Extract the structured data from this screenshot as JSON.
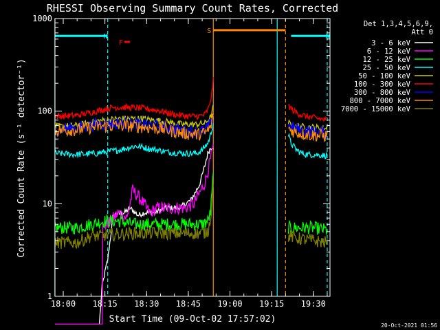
{
  "chart_data": {
    "type": "line",
    "title": "RHESSI Observing Summary Count Rates, Corrected",
    "xlabel": "Start Time (09-Oct-02 17:57:02)",
    "ylabel": "Corrected Count Rate (s⁻¹ detector⁻¹)",
    "yscale": "log",
    "ylim": [
      1,
      1000
    ],
    "xlim": [
      "17:57:02",
      "19:36:00"
    ],
    "x_ticks": [
      "18:00",
      "18:15",
      "18:30",
      "18:45",
      "19:00",
      "19:15",
      "19:30"
    ],
    "y_ticks": [
      "1",
      "10",
      "100",
      "1000"
    ],
    "timestamp": "20-Oct-2021 01:56",
    "legend": {
      "position": "top-right",
      "header": [
        "Det 1,3,4,5,6,9,",
        "Att 0"
      ],
      "entries": [
        {
          "label": "3 - 6 keV",
          "color": "#ffffff"
        },
        {
          "label": "6 - 12 keV",
          "color": "#ff00ff"
        },
        {
          "label": "12 - 25 keV",
          "color": "#00ff00"
        },
        {
          "label": "25 - 50 keV",
          "color": "#00ffff"
        },
        {
          "label": "50 - 100 keV",
          "color": "#cccc00"
        },
        {
          "label": "100 - 300 keV",
          "color": "#ff0000"
        },
        {
          "label": "300 - 800 keV",
          "color": "#0000ff"
        },
        {
          "label": "800 - 7000 keV",
          "color": "#ff8c00"
        },
        {
          "label": "7000 - 15000 keV",
          "color": "#808000"
        }
      ]
    },
    "flags": [
      {
        "label": "N",
        "color": "#00ffff",
        "x_start": "17:57",
        "x_end": "18:16",
        "y": 650
      },
      {
        "label": "F",
        "color": "#ff0000",
        "x_start": "18:22",
        "x_end": "18:24",
        "y": 560
      },
      {
        "label": "S",
        "color": "#ff8c00",
        "x_start": "18:54",
        "x_end": "19:20",
        "y": 750
      },
      {
        "label": "N",
        "color": "#00ffff",
        "x_start": "19:22",
        "x_end": "19:36",
        "y": 650
      }
    ],
    "vertical_lines": [
      {
        "x": "17:57",
        "color": "#00ffff",
        "style": "solid"
      },
      {
        "x": "18:16",
        "color": "#00ffff",
        "style": "dashed"
      },
      {
        "x": "18:54",
        "color": "#ff8c00",
        "style": "solid"
      },
      {
        "x": "19:17",
        "color": "#00ffff",
        "style": "solid"
      },
      {
        "x": "19:20",
        "color": "#ff8c00",
        "style": "dashed"
      },
      {
        "x": "19:35",
        "color": "#00ffff",
        "style": "dashed"
      }
    ],
    "data_gap": [
      "18:54",
      "19:20"
    ],
    "series": [
      {
        "name": "3 - 6 keV",
        "color": "#ffffff",
        "segments": [
          {
            "x": [
              "17:57",
              "18:13",
              "18:14",
              "18:15",
              "18:16",
              "18:18",
              "18:22",
              "18:24",
              "18:27",
              "18:29",
              "18:33",
              "18:37",
              "18:42",
              "18:46",
              "18:49",
              "18:51",
              "18:52",
              "18:53",
              "18:54"
            ],
            "y": [
              0.5,
              0.5,
              1.3,
              1.8,
              2.5,
              7.5,
              8,
              9,
              7.5,
              8,
              8,
              9,
              9,
              11,
              16,
              26,
              35,
              40,
              42
            ]
          }
        ]
      },
      {
        "name": "6 - 12 keV",
        "color": "#ff00ff",
        "segments": [
          {
            "x": [
              "17:57",
              "18:14",
              "18:14.2",
              "18:17",
              "18:20",
              "18:23",
              "18:25",
              "18:27",
              "18:29",
              "18:31",
              "18:34",
              "18:37",
              "18:40",
              "18:44",
              "18:47",
              "18:49",
              "18:51",
              "18:53",
              "18:54"
            ],
            "y": [
              0.5,
              0.5,
              5.5,
              6.5,
              8,
              7,
              14,
              12,
              10,
              8,
              9,
              9,
              9,
              9,
              10,
              13,
              17,
              30,
              40
            ]
          }
        ]
      },
      {
        "name": "12 - 25 keV",
        "color": "#00ff00",
        "segments": [
          {
            "x": [
              "17:57",
              "18:05",
              "18:10",
              "18:15",
              "18:20",
              "18:25",
              "18:30",
              "18:35",
              "18:40",
              "18:45",
              "18:50",
              "18:52",
              "18:53",
              "18:54"
            ],
            "y": [
              5.5,
              5.5,
              6,
              6.5,
              6.5,
              6,
              6,
              6,
              6,
              6,
              6,
              6.5,
              8,
              20
            ]
          },
          {
            "x": [
              "19:21",
              "19:25",
              "19:30",
              "19:35"
            ],
            "y": [
              5.5,
              5.5,
              5.5,
              5.2
            ]
          }
        ]
      },
      {
        "name": "25 - 50 keV",
        "color": "#00ffff",
        "segments": [
          {
            "x": [
              "17:57",
              "18:05",
              "18:12",
              "18:20",
              "18:26",
              "18:30",
              "18:38",
              "18:44",
              "18:48",
              "18:50",
              "18:52",
              "18:53",
              "18:54"
            ],
            "y": [
              35,
              34,
              35,
              38,
              42,
              40,
              36,
              35,
              35,
              38,
              45,
              55,
              75
            ]
          },
          {
            "x": [
              "19:21",
              "19:22",
              "19:24",
              "19:26",
              "19:28",
              "19:30",
              "19:35"
            ],
            "y": [
              55,
              45,
              38,
              35,
              34,
              34,
              33
            ]
          }
        ]
      },
      {
        "name": "50 - 100 keV",
        "color": "#cccc00",
        "segments": [
          {
            "x": [
              "17:57",
              "18:05",
              "18:12",
              "18:20",
              "18:28",
              "18:36",
              "18:43",
              "18:48",
              "18:51",
              "18:53",
              "18:54"
            ],
            "y": [
              68,
              70,
              78,
              83,
              83,
              78,
              72,
              72,
              74,
              85,
              110
            ]
          },
          {
            "x": [
              "19:21",
              "19:23",
              "19:26",
              "19:30",
              "19:35"
            ],
            "y": [
              75,
              70,
              68,
              67,
              65
            ]
          }
        ]
      },
      {
        "name": "100 - 300 keV",
        "color": "#ff0000",
        "segments": [
          {
            "x": [
              "17:57",
              "18:05",
              "18:12",
              "18:18",
              "18:22",
              "18:28",
              "18:34",
              "18:40",
              "18:45",
              "18:49",
              "18:51",
              "18:52.5",
              "18:53.5",
              "18:54"
            ],
            "y": [
              88,
              90,
              100,
              110,
              110,
              108,
              102,
              92,
              88,
              88,
              92,
              110,
              160,
              215
            ]
          },
          {
            "x": [
              "19:21",
              "19:23",
              "19:26",
              "19:30",
              "19:35"
            ],
            "y": [
              115,
              100,
              90,
              85,
              80
            ]
          }
        ]
      },
      {
        "name": "300 - 800 keV",
        "color": "#0000ff",
        "segments": [
          {
            "x": [
              "17:57",
              "18:05",
              "18:12",
              "18:20",
              "18:28",
              "18:36",
              "18:43",
              "18:48",
              "18:51",
              "18:53",
              "18:54"
            ],
            "y": [
              64,
              66,
              72,
              74,
              72,
              68,
              62,
              60,
              62,
              72,
              95
            ]
          },
          {
            "x": [
              "19:21",
              "19:23",
              "19:26",
              "19:30",
              "19:35"
            ],
            "y": [
              70,
              65,
              62,
              60,
              58
            ]
          }
        ]
      },
      {
        "name": "800 - 7000 keV",
        "color": "#ff8c00",
        "segments": [
          {
            "x": [
              "17:57",
              "18:05",
              "18:12",
              "18:20",
              "18:28",
              "18:36",
              "18:43",
              "18:48",
              "18:51",
              "18:53",
              "18:54"
            ],
            "y": [
              62,
              63,
              68,
              70,
              68,
              64,
              58,
              56,
              58,
              66,
              90
            ]
          },
          {
            "x": [
              "19:21",
              "19:23",
              "19:26",
              "19:30",
              "19:35"
            ],
            "y": [
              65,
              60,
              57,
              55,
              54
            ]
          }
        ]
      },
      {
        "name": "7000 - 15000 keV",
        "color": "#808000",
        "segments": [
          {
            "x": [
              "17:57",
              "18:05",
              "18:08",
              "18:10",
              "18:13",
              "18:16",
              "18:20",
              "18:25",
              "18:30",
              "18:35",
              "18:40",
              "18:45",
              "18:50",
              "18:52",
              "18:53",
              "18:54"
            ],
            "y": [
              3.8,
              3.8,
              4.2,
              4.5,
              4.5,
              4.6,
              4.7,
              4.8,
              4.8,
              4.8,
              4.8,
              4.8,
              4.8,
              5,
              7,
              15
            ]
          },
          {
            "x": [
              "19:21",
              "19:25",
              "19:30",
              "19:35"
            ],
            "y": [
              4.5,
              4.2,
              4.0,
              3.8
            ]
          }
        ]
      }
    ]
  }
}
